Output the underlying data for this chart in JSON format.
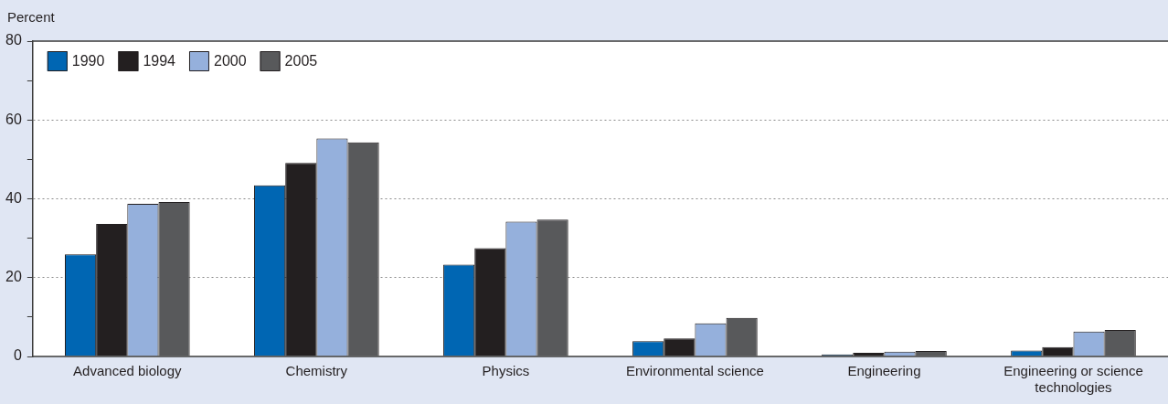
{
  "chart_data": {
    "type": "bar",
    "ylabel": "Percent",
    "categories": [
      "Advanced biology",
      "Chemistry",
      "Physics",
      "Environmental science",
      "Engineering",
      "Engineering or science technologies"
    ],
    "series": [
      {
        "name": "1990",
        "color": "#0066b3",
        "values": [
          25.9,
          43.4,
          23.3,
          3.9,
          0.5,
          1.5
        ]
      },
      {
        "name": "1994",
        "color": "#231f20",
        "values": [
          33.6,
          49.1,
          27.5,
          4.6,
          0.9,
          2.4
        ]
      },
      {
        "name": "2000",
        "color": "#95b0dc",
        "values": [
          38.7,
          55.3,
          34.2,
          8.4,
          1.2,
          6.3
        ]
      },
      {
        "name": "2005",
        "color": "#58595b",
        "values": [
          39.2,
          54.3,
          34.7,
          9.8,
          1.4,
          6.7
        ]
      }
    ],
    "ylim": [
      0,
      80
    ],
    "yticks": [
      0,
      {
        "value": 10,
        "label": null
      },
      20,
      {
        "value": 30,
        "label": null
      },
      40,
      {
        "value": 50,
        "label": null
      },
      60,
      {
        "value": 70,
        "label": null
      },
      80
    ],
    "grid": "y",
    "legend": "top left"
  }
}
